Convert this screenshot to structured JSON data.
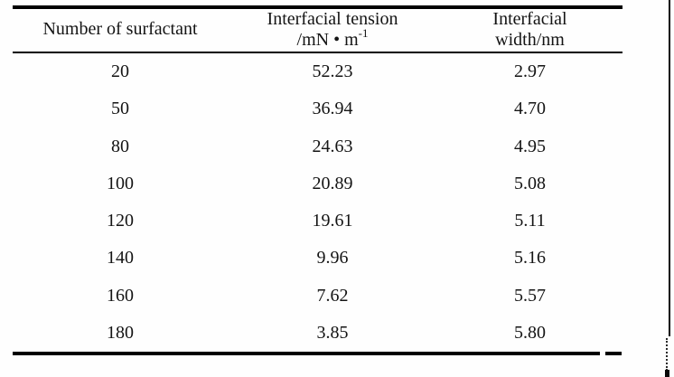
{
  "colors": {
    "background": "#fefefe",
    "text": "#141414",
    "rule": "#000000"
  },
  "table": {
    "col1_header": "Number of surfactant",
    "col2_header_line1": "Interfacial tension",
    "col2_header_unit_base": "/mN • m",
    "col2_header_unit_sup": "-1",
    "col3_header_line1": "Interfacial",
    "col3_header_line2": "width/nm",
    "rows": [
      [
        "20",
        "52.23",
        "2.97"
      ],
      [
        "50",
        "36.94",
        "4.70"
      ],
      [
        "80",
        "24.63",
        "4.95"
      ],
      [
        "100",
        "20.89",
        "5.08"
      ],
      [
        "120",
        "19.61",
        "5.11"
      ],
      [
        "140",
        "9.96",
        "5.16"
      ],
      [
        "160",
        "7.62",
        "5.57"
      ],
      [
        "180",
        "3.85",
        "5.80"
      ]
    ]
  },
  "chart_data": {
    "type": "table",
    "columns": [
      "Number of surfactant",
      "Interfacial tension /mN·m⁻¹",
      "Interfacial width/nm"
    ],
    "number_of_surfactant": [
      20,
      50,
      80,
      100,
      120,
      140,
      160,
      180
    ],
    "interfacial_tension_mN_per_m": [
      52.23,
      36.94,
      24.63,
      20.89,
      19.61,
      9.96,
      7.62,
      3.85
    ],
    "interfacial_width_nm": [
      2.97,
      4.7,
      4.95,
      5.08,
      5.11,
      5.16,
      5.57,
      5.8
    ]
  }
}
